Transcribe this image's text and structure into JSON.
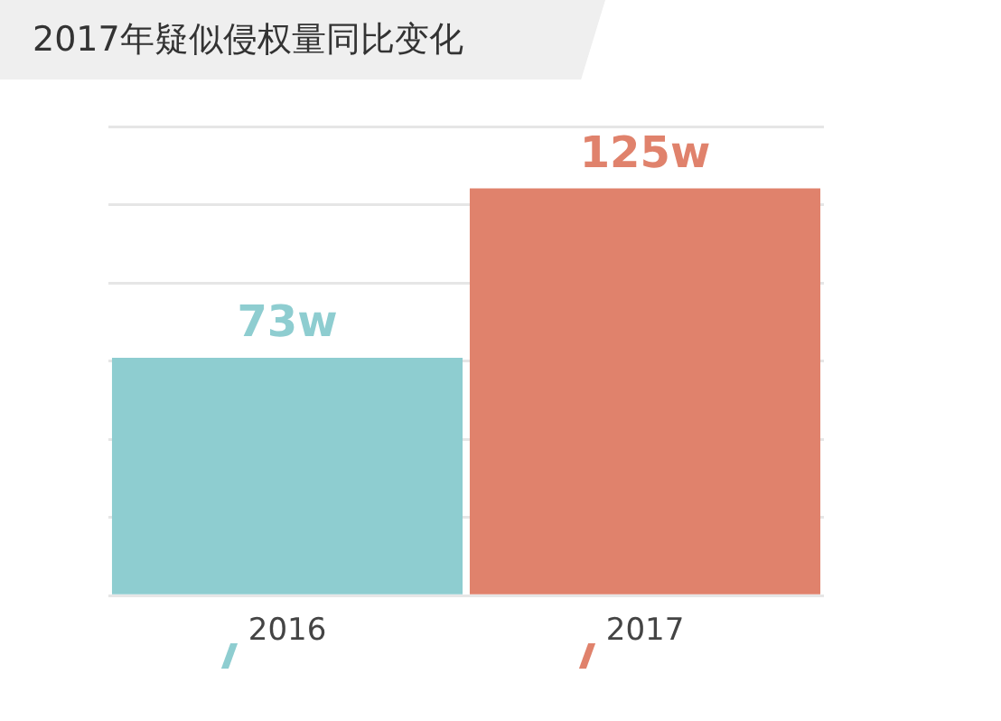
{
  "chart_data": {
    "type": "bar",
    "title": "2017年疑似侵权量同比变化",
    "categories": [
      "2016",
      "2017"
    ],
    "values": [
      73,
      125
    ],
    "colors": [
      "#8ecdd0",
      "#e0826c"
    ],
    "value_labels": [
      "73w",
      "125w"
    ],
    "ylim": [
      0,
      144
    ],
    "yticks": [
      {
        "value": 0,
        "label": null
      },
      {
        "value": 24,
        "label": null
      },
      {
        "value": 48,
        "label": null
      },
      {
        "value": 72,
        "label": null
      },
      {
        "value": 96,
        "label": null
      },
      {
        "value": 120,
        "label": null
      },
      {
        "value": 144,
        "label": null
      }
    ],
    "grid": "y",
    "tick_labels": "x"
  }
}
